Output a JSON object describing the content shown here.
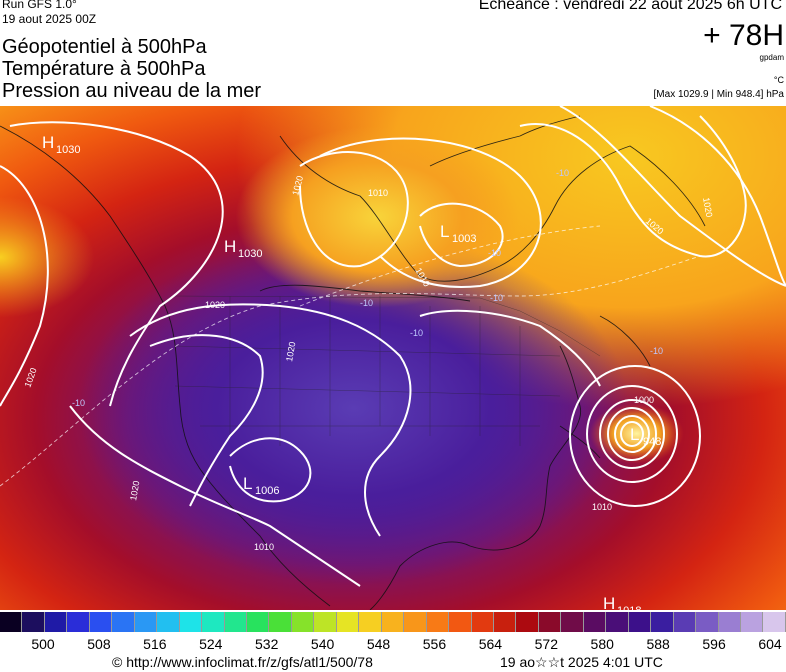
{
  "header": {
    "run": "Run GFS 1.0°",
    "run_date": "19 aout 2025 00Z",
    "titles": [
      "Géopotentiel à 500hPa",
      "Température à 500hPa",
      "Pression au niveau de la mer"
    ],
    "valid_time": "Echéance : vendredi 22 aout 2025 6h UTC",
    "lead": "+ 78H",
    "unit_geo": "gpdam",
    "unit_temp": "°C",
    "pressure_range": "[Max 1029.9 | Min 948.4] hPa"
  },
  "map": {
    "pressure_centers": [
      {
        "type": "H",
        "value": "1030",
        "name": "north-pacific-high"
      },
      {
        "type": "H",
        "value": "1030",
        "name": "alaska-high"
      },
      {
        "type": "L",
        "value": "1003",
        "name": "hudson-bay-low"
      },
      {
        "type": "L",
        "value": "1006",
        "name": "southwest-low"
      },
      {
        "type": "L",
        "value": "948",
        "name": "atlantic-hurricane-low"
      },
      {
        "type": "H",
        "value": "1018",
        "name": "gulf-high"
      }
    ],
    "isobar_labels": [
      "1020",
      "1010",
      "1020",
      "1020",
      "1020",
      "1010",
      "1020",
      "1000",
      "1010",
      "1010",
      "1020",
      "1020"
    ],
    "temperature_labels": [
      "-10",
      "-10",
      "-10",
      "-10",
      "-10",
      "-10",
      "-10"
    ]
  },
  "colorbar": {
    "colors": [
      "#0a0022",
      "#1c0e5e",
      "#1f1aa6",
      "#2a2dd8",
      "#2a4ff0",
      "#2a74f4",
      "#2a98f4",
      "#22bff0",
      "#1ee3e8",
      "#1ee8c0",
      "#22e68e",
      "#28e25e",
      "#4ae038",
      "#86e22a",
      "#bde426",
      "#e6e424",
      "#f6cf22",
      "#f8b21e",
      "#f8961a",
      "#f87a16",
      "#f25812",
      "#e23a10",
      "#c8200e",
      "#ac0a10",
      "#8a0a2a",
      "#700c48",
      "#5a0c62",
      "#4a0e78",
      "#3c108a",
      "#3a1ea0",
      "#5a3cb4",
      "#7a5cc4",
      "#9a7ed2",
      "#baa2e0",
      "#d8c6ec"
    ],
    "ticks": [
      "500",
      "508",
      "516",
      "524",
      "532",
      "540",
      "548",
      "556",
      "564",
      "572",
      "580",
      "588",
      "596",
      "604"
    ]
  },
  "footer": {
    "url": "© http://www.infoclimat.fr/z/gfs/atl1/500/78",
    "timestamp": "19 ao☆☆t 2025  4:01 UTC"
  }
}
